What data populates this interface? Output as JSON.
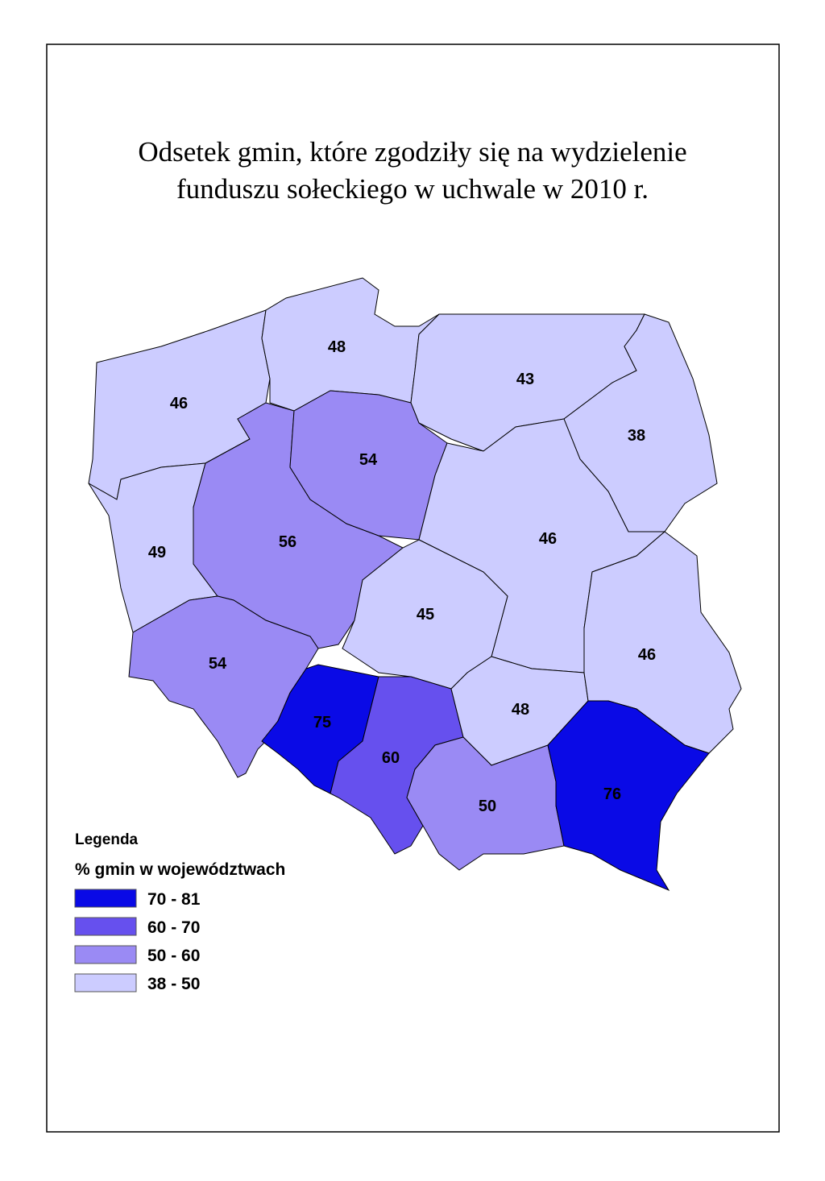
{
  "title_lines": [
    "Odsetek gmin, które zgodziły się na wydzielenie",
    "funduszu sołeckiego w uchwale w 2010 r."
  ],
  "regions": [
    {
      "value": 46,
      "color": "#ccccff"
    },
    {
      "value": 48,
      "color": "#ccccff"
    },
    {
      "value": 43,
      "color": "#ccccff"
    },
    {
      "value": 38,
      "color": "#ccccff"
    },
    {
      "value": 49,
      "color": "#ccccff"
    },
    {
      "value": 56,
      "color": "#9a8af4"
    },
    {
      "value": 54,
      "color": "#9a8af4"
    },
    {
      "value": 46,
      "color": "#ccccff"
    },
    {
      "value": 45,
      "color": "#ccccff"
    },
    {
      "value": 54,
      "color": "#9a8af4"
    },
    {
      "value": 75,
      "color": "#0a0ae6"
    },
    {
      "value": 60,
      "color": "#6650ee"
    },
    {
      "value": 48,
      "color": "#ccccff"
    },
    {
      "value": 46,
      "color": "#ccccff"
    },
    {
      "value": 50,
      "color": "#9a8af4"
    },
    {
      "value": 76,
      "color": "#0a0ae6"
    }
  ],
  "legend": {
    "heading": "Legenda",
    "subtitle": "% gmin w województwach",
    "items": [
      {
        "label": "70 - 81",
        "color": "#0a0ae6"
      },
      {
        "label": "60 - 70",
        "color": "#6650ee"
      },
      {
        "label": "50 - 60",
        "color": "#9a8af4"
      },
      {
        "label": "38 - 50",
        "color": "#ccccff"
      }
    ]
  }
}
